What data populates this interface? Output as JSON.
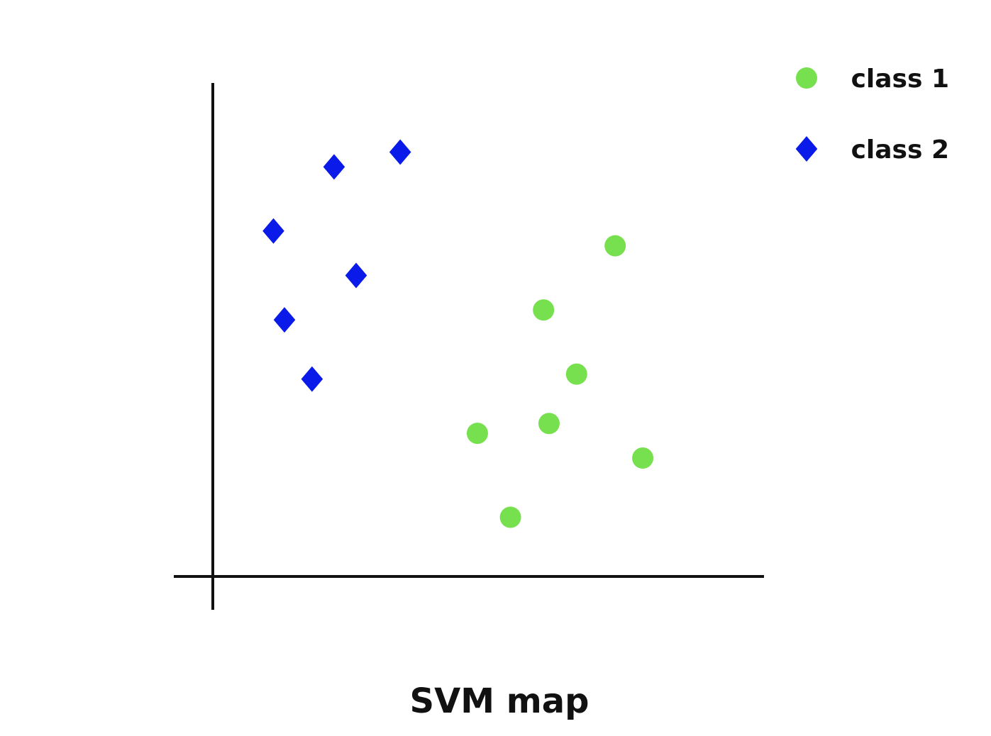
{
  "chart_data": {
    "type": "scatter",
    "title": "SVM map",
    "xlabel": "",
    "ylabel": "",
    "xlim": [
      0,
      10
    ],
    "ylim": [
      0,
      10
    ],
    "grid": false,
    "legend_position": "top-right",
    "series": [
      {
        "name": "class 1",
        "marker": "circle",
        "color": "#77e04f",
        "points": [
          {
            "x": 7.3,
            "y": 6.7
          },
          {
            "x": 6.0,
            "y": 5.4
          },
          {
            "x": 6.6,
            "y": 4.1
          },
          {
            "x": 6.1,
            "y": 3.1
          },
          {
            "x": 4.8,
            "y": 2.9
          },
          {
            "x": 7.8,
            "y": 2.4
          },
          {
            "x": 5.4,
            "y": 1.2
          }
        ]
      },
      {
        "name": "class 2",
        "marker": "diamond",
        "color": "#0a1ae8",
        "points": [
          {
            "x": 3.4,
            "y": 8.6
          },
          {
            "x": 2.2,
            "y": 8.3
          },
          {
            "x": 1.1,
            "y": 7.0
          },
          {
            "x": 2.6,
            "y": 6.1
          },
          {
            "x": 1.3,
            "y": 5.2
          },
          {
            "x": 1.8,
            "y": 4.0
          }
        ]
      }
    ]
  }
}
